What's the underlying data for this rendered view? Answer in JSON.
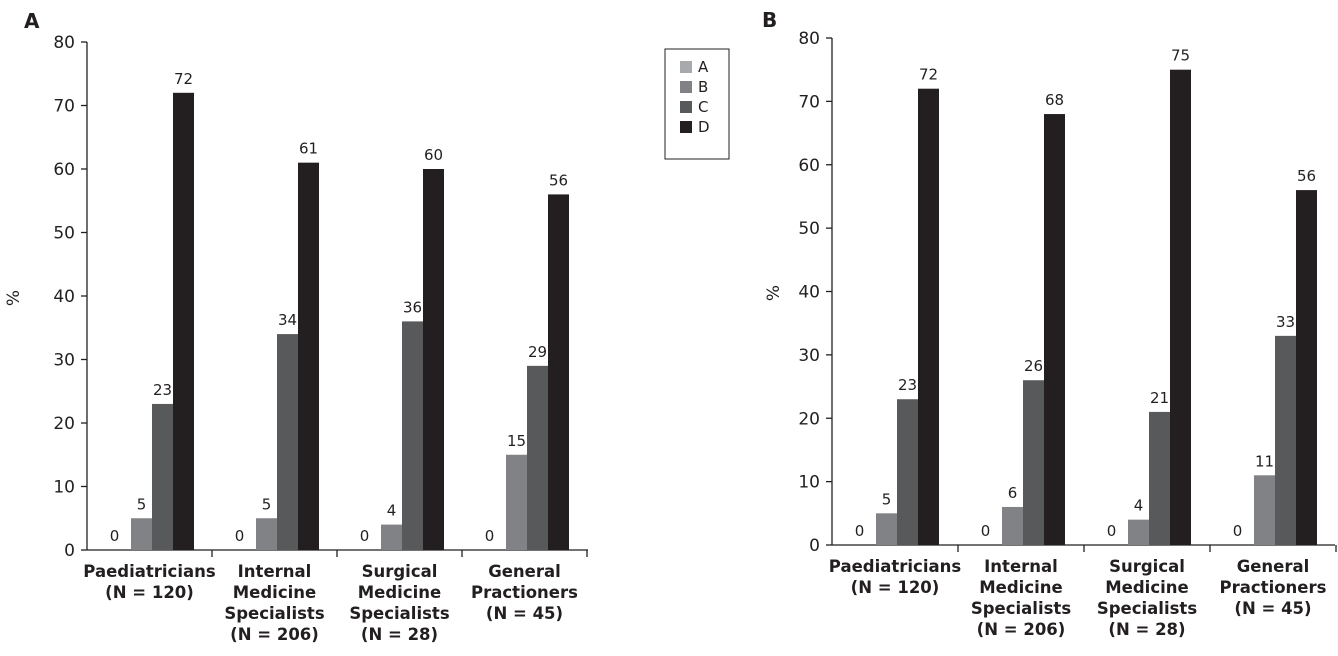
{
  "chart_data": [
    {
      "type": "bar",
      "panel": "A",
      "categories": [
        [
          "Paediatricians",
          "(N = 120)"
        ],
        [
          "Internal",
          "Medicine",
          "Specialists",
          "(N = 206)"
        ],
        [
          "Surgical",
          "Medicine",
          "Specialists",
          "(N = 28)"
        ],
        [
          "General",
          "Practioners",
          "(N = 45)"
        ]
      ],
      "series": [
        {
          "name": "A",
          "color": "#a7a9ac",
          "values": [
            0,
            0,
            0,
            0
          ]
        },
        {
          "name": "B",
          "color": "#808285",
          "values": [
            5,
            5,
            4,
            15
          ]
        },
        {
          "name": "C",
          "color": "#58595b",
          "values": [
            23,
            34,
            36,
            29
          ]
        },
        {
          "name": "D",
          "color": "#231f20",
          "values": [
            72,
            61,
            60,
            56
          ]
        }
      ],
      "ylabel": "%",
      "ylim": [
        0,
        80
      ],
      "yticks": [
        0,
        10,
        20,
        30,
        40,
        50,
        60,
        70,
        80
      ],
      "grid": false,
      "legend": "top-right"
    },
    {
      "type": "bar",
      "panel": "B",
      "categories": [
        [
          "Paediatricians",
          "(N = 120)"
        ],
        [
          "Internal",
          "Medicine",
          "Specialists",
          "(N = 206)"
        ],
        [
          "Surgical",
          "Medicine",
          "Specialists",
          "(N = 28)"
        ],
        [
          "General",
          "Practioners",
          "(N = 45)"
        ]
      ],
      "series": [
        {
          "name": "A",
          "color": "#a7a9ac",
          "values": [
            0,
            0,
            0,
            0
          ]
        },
        {
          "name": "B",
          "color": "#808285",
          "values": [
            5,
            6,
            4,
            11
          ]
        },
        {
          "name": "C",
          "color": "#58595b",
          "values": [
            23,
            26,
            21,
            33
          ]
        },
        {
          "name": "D",
          "color": "#231f20",
          "values": [
            72,
            68,
            75,
            56
          ]
        }
      ],
      "ylabel": "%",
      "ylim": [
        0,
        80
      ],
      "yticks": [
        0,
        10,
        20,
        30,
        40,
        50,
        60,
        70,
        80
      ],
      "grid": false,
      "legend": "none"
    }
  ],
  "legend": {
    "items": [
      {
        "name": "A",
        "color": "#a7a9ac"
      },
      {
        "name": "B",
        "color": "#808285"
      },
      {
        "name": "C",
        "color": "#58595b"
      },
      {
        "name": "D",
        "color": "#231f20"
      }
    ]
  }
}
